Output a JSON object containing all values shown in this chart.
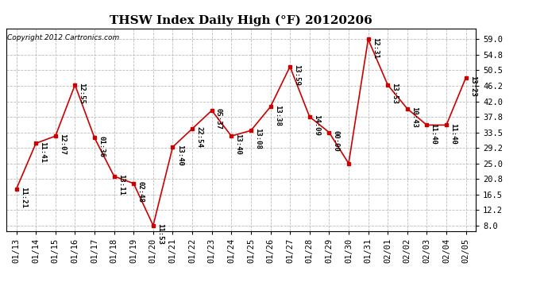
{
  "title": "THSW Index Daily High (°F) 20120206",
  "copyright": "Copyright 2012 Cartronics.com",
  "x_labels": [
    "01/13",
    "01/14",
    "01/15",
    "01/16",
    "01/17",
    "01/18",
    "01/19",
    "01/20",
    "01/21",
    "01/22",
    "01/23",
    "01/24",
    "01/25",
    "01/26",
    "01/27",
    "01/28",
    "01/29",
    "01/30",
    "01/31",
    "02/01",
    "02/02",
    "02/03",
    "02/04",
    "02/05"
  ],
  "y_values": [
    18.0,
    30.5,
    32.5,
    46.5,
    32.0,
    21.5,
    19.5,
    8.0,
    29.5,
    34.5,
    39.5,
    32.5,
    34.0,
    40.5,
    51.5,
    37.8,
    33.5,
    25.0,
    59.0,
    46.5,
    40.0,
    35.5,
    35.5,
    48.5
  ],
  "annotations": [
    "11:21",
    "11:41",
    "12:07",
    "12:55",
    "01:36",
    "13:11",
    "02:48",
    "11:53",
    "13:40",
    "22:54",
    "05:37",
    "13:40",
    "13:08",
    "13:38",
    "13:59",
    "14:09",
    "00:00",
    "",
    "12:31",
    "13:53",
    "10:43",
    "11:40",
    "11:40",
    "13:23"
  ],
  "y_ticks": [
    8.0,
    12.2,
    16.5,
    20.8,
    25.0,
    29.2,
    33.5,
    37.8,
    42.0,
    46.2,
    50.5,
    54.8,
    59.0
  ],
  "ylim": [
    6.5,
    62.0
  ],
  "xlim": [
    -0.5,
    23.5
  ],
  "line_color": "#cc0000",
  "marker_color": "#cc0000",
  "bg_color": "#ffffff",
  "grid_color": "#bbbbbb",
  "title_fontsize": 11,
  "annot_fontsize": 6.5,
  "copyright_fontsize": 6.5,
  "tick_fontsize": 7.5
}
